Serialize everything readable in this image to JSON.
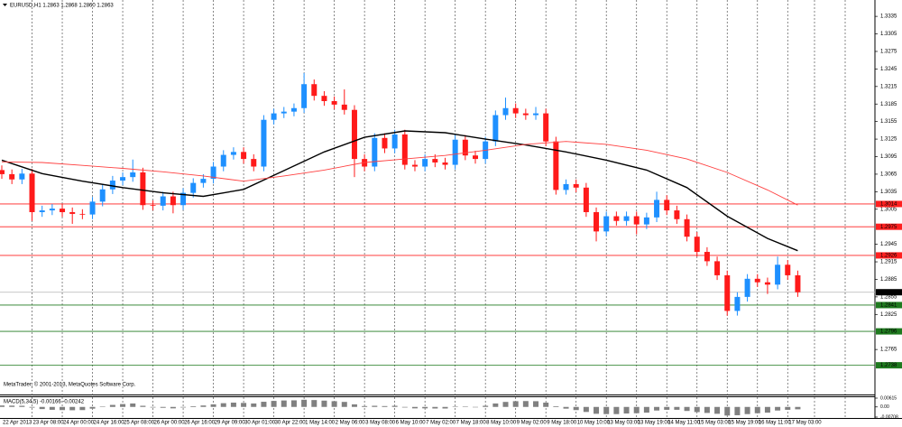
{
  "chart_data": [
    {
      "type": "candlestick",
      "title": "EURUSD,H1  1.2863 1.2868 1.2860 1.2863",
      "annotation": "MetaTrader, © 2001-2013, MetaQuotes Software Corp.",
      "up_color": "#1e90ff",
      "down_color": "#ff1a1a",
      "xlim": [
        -0.18,
        86.66
      ],
      "ylim": [
        1.2688,
        1.3363
      ],
      "grid": true,
      "xticks": [
        {
          "value": 0,
          "label": "22 Apr 2013"
        },
        {
          "value": 3,
          "label": "23 Apr 08:00"
        },
        {
          "value": 6,
          "label": "24 Apr 00:00"
        },
        {
          "value": 9,
          "label": "24 Apr 16:00"
        },
        {
          "value": 12,
          "label": "25 Apr 08:00"
        },
        {
          "value": 15,
          "label": "26 Apr 00:00"
        },
        {
          "value": 18,
          "label": "26 Apr 16:00"
        },
        {
          "value": 21,
          "label": "29 Apr 09:00"
        },
        {
          "value": 24,
          "label": "30 Apr 01:00"
        },
        {
          "value": 27,
          "label": "30 Apr 22:00"
        },
        {
          "value": 30,
          "label": "1 May 14:00"
        },
        {
          "value": 33,
          "label": "2 May 06:00"
        },
        {
          "value": 36,
          "label": "3 May 08:00"
        },
        {
          "value": 39,
          "label": "6 May 10:00"
        },
        {
          "value": 42,
          "label": "7 May 02:00"
        },
        {
          "value": 45,
          "label": "7 May 18:00"
        },
        {
          "value": 48,
          "label": "8 May 10:00"
        },
        {
          "value": 51,
          "label": "9 May 02:00"
        },
        {
          "value": 54,
          "label": "9 May 18:00"
        },
        {
          "value": 57,
          "label": "10 May 10:00"
        },
        {
          "value": 60,
          "label": "13 May 03:00"
        },
        {
          "value": 63,
          "label": "13 May 19:00"
        },
        {
          "value": 66,
          "label": "14 May 11:00"
        },
        {
          "value": 69,
          "label": "15 May 03:00"
        },
        {
          "value": 72,
          "label": "15 May 19:00"
        },
        {
          "value": 75,
          "label": "16 May 11:00"
        },
        {
          "value": 78,
          "label": "17 May 03:00"
        }
      ],
      "yticks": [
        1.3335,
        1.3305,
        1.3275,
        1.3245,
        1.3215,
        1.3185,
        1.3155,
        1.3125,
        1.3095,
        1.3065,
        1.3035,
        1.3005,
        1.2945,
        1.2915,
        1.2885,
        1.2855,
        1.2825,
        1.2765
      ],
      "open": [
        1.3072,
        1.3065,
        1.3056,
        1.3066,
        1.3,
        1.3003,
        1.3006,
        1.3,
        1.2997,
        1.2996,
        1.3018,
        1.3039,
        1.3054,
        1.306,
        1.3068,
        1.3012,
        1.3011,
        1.3027,
        1.3012,
        1.3033,
        1.305,
        1.3057,
        1.3078,
        1.3098,
        1.3103,
        1.3091,
        1.3078,
        1.3158,
        1.3169,
        1.3172,
        1.3178,
        1.3219,
        1.3199,
        1.319,
        1.3184,
        1.3175,
        1.3091,
        1.3078,
        1.3127,
        1.3109,
        1.3133,
        1.3081,
        1.3078,
        1.3091,
        1.3085,
        1.3081,
        1.3124,
        1.3097,
        1.3091,
        1.3121,
        1.3166,
        1.3178,
        1.3169,
        1.3166,
        1.3169,
        1.3121,
        1.3038,
        1.3048,
        1.3042,
        1.3,
        1.2967,
        1.2993,
        1.2985,
        1.2993,
        1.2979,
        1.2991,
        1.3021,
        1.3003,
        1.2988,
        1.2958,
        1.2932,
        1.2916,
        1.2892,
        1.2831,
        1.2855,
        1.2886,
        1.288,
        1.2876,
        1.291,
        1.2892
      ],
      "high": [
        1.308,
        1.3073,
        1.3074,
        1.3074,
        1.3011,
        1.3014,
        1.3014,
        1.3008,
        1.3005,
        1.3026,
        1.3047,
        1.3062,
        1.3068,
        1.309,
        1.3076,
        1.302,
        1.3035,
        1.3035,
        1.3041,
        1.3058,
        1.3065,
        1.3086,
        1.3106,
        1.3111,
        1.3111,
        1.3099,
        1.3166,
        1.3177,
        1.318,
        1.3186,
        1.3238,
        1.3227,
        1.3207,
        1.3198,
        1.321,
        1.3183,
        1.3099,
        1.3135,
        1.3135,
        1.3141,
        1.3141,
        1.3089,
        1.3099,
        1.3099,
        1.3093,
        1.3132,
        1.3132,
        1.3105,
        1.3129,
        1.3174,
        1.3196,
        1.3186,
        1.3177,
        1.318,
        1.3177,
        1.3129,
        1.3056,
        1.3056,
        1.305,
        1.3008,
        1.3001,
        1.3001,
        1.3001,
        1.3001,
        1.2999,
        1.3035,
        1.3029,
        1.3011,
        1.2996,
        1.2966,
        1.294,
        1.2924,
        1.29,
        1.2863,
        1.2894,
        1.2894,
        1.2888,
        1.2924,
        1.2918,
        1.29
      ],
      "low": [
        1.3057,
        1.3048,
        1.3048,
        1.2985,
        1.2992,
        1.2995,
        1.2992,
        1.298,
        1.2988,
        1.2988,
        1.301,
        1.3031,
        1.3046,
        1.3052,
        1.3004,
        1.3003,
        1.3003,
        1.2998,
        1.3004,
        1.3025,
        1.3042,
        1.3049,
        1.307,
        1.309,
        1.3083,
        1.307,
        1.307,
        1.315,
        1.3161,
        1.3164,
        1.317,
        1.3191,
        1.3182,
        1.3176,
        1.3167,
        1.306,
        1.307,
        1.307,
        1.3101,
        1.3101,
        1.3073,
        1.307,
        1.307,
        1.3077,
        1.3073,
        1.3073,
        1.3089,
        1.3083,
        1.3083,
        1.3113,
        1.3158,
        1.3161,
        1.3158,
        1.3158,
        1.3113,
        1.303,
        1.303,
        1.3034,
        1.2992,
        1.295,
        1.2959,
        1.2977,
        1.2977,
        1.2962,
        1.2971,
        1.2983,
        1.2995,
        1.298,
        1.295,
        1.2924,
        1.2908,
        1.2884,
        1.2823,
        1.2823,
        1.2847,
        1.2872,
        1.286,
        1.2868,
        1.2884,
        1.2855
      ],
      "close": [
        1.3065,
        1.3056,
        1.3066,
        1.3,
        1.3003,
        1.3006,
        1.3,
        1.2997,
        1.2996,
        1.3018,
        1.3039,
        1.3054,
        1.306,
        1.3068,
        1.3012,
        1.3011,
        1.3027,
        1.3012,
        1.3033,
        1.305,
        1.3057,
        1.3078,
        1.3098,
        1.3103,
        1.3091,
        1.3078,
        1.3158,
        1.3169,
        1.3172,
        1.3178,
        1.3219,
        1.3199,
        1.319,
        1.3184,
        1.3175,
        1.3091,
        1.3078,
        1.3127,
        1.3109,
        1.3133,
        1.3081,
        1.3078,
        1.3091,
        1.3085,
        1.3081,
        1.3124,
        1.3097,
        1.3091,
        1.3121,
        1.3166,
        1.3178,
        1.3169,
        1.3166,
        1.3169,
        1.3121,
        1.3038,
        1.3048,
        1.3042,
        1.3,
        1.2967,
        1.2993,
        1.2985,
        1.2993,
        1.2979,
        1.2991,
        1.3021,
        1.3003,
        1.2988,
        1.2958,
        1.2932,
        1.2916,
        1.2892,
        1.2831,
        1.2855,
        1.2886,
        1.288,
        1.2876,
        1.291,
        1.2892,
        1.2863
      ],
      "lines": [
        {
          "color": "#000000",
          "x": [
            0,
            4,
            8,
            12,
            16,
            20,
            24,
            28,
            32,
            36,
            40,
            44,
            48,
            52,
            56,
            60,
            64,
            68,
            72,
            76,
            79
          ],
          "values": [
            1.3089,
            1.3066,
            1.3053,
            1.3042,
            1.3033,
            1.3027,
            1.3039,
            1.3071,
            1.3103,
            1.3128,
            1.3139,
            1.3136,
            1.3125,
            1.3115,
            1.3103,
            1.3089,
            1.3072,
            1.3042,
            1.2993,
            1.2955,
            1.2934
          ]
        },
        {
          "color": "#ff4040",
          "x": [
            0,
            4,
            8,
            12,
            16,
            20,
            24,
            28,
            32,
            36,
            40,
            44,
            48,
            52,
            56,
            60,
            64,
            68,
            72,
            76,
            79
          ],
          "values": [
            1.3086,
            1.3085,
            1.308,
            1.3075,
            1.3069,
            1.3062,
            1.3053,
            1.3062,
            1.3072,
            1.3085,
            1.3091,
            1.3097,
            1.3106,
            1.3116,
            1.3121,
            1.3116,
            1.3106,
            1.3091,
            1.3068,
            1.3038,
            1.3012
          ]
        }
      ],
      "levels": [
        {
          "value": 1.3014,
          "color": "#ff2020"
        },
        {
          "value": 1.2975,
          "color": "#ff2020"
        },
        {
          "value": 1.2926,
          "color": "#ff2020"
        },
        {
          "value": 1.2841,
          "color": "#1f7a1f"
        },
        {
          "value": 1.2796,
          "color": "#1f7a1f"
        },
        {
          "value": 1.2738,
          "color": "#1f7a1f"
        }
      ],
      "last_price": {
        "value": 1.2863,
        "color": "#000000"
      }
    },
    {
      "type": "macd",
      "title": "MACD(5,34,5) -0.00166 -0.00242",
      "color": "#808080",
      "ylim": [
        -0.00708,
        0.00615
      ],
      "yticks": [
        0.00615,
        {
          "value": 0,
          "label": "0.00"
        },
        -0.00708
      ],
      "values": [
        0.001,
        0.0009,
        0.0008,
        -0.0005,
        -0.0015,
        -0.002,
        -0.0022,
        -0.0023,
        -0.0022,
        -0.0012,
        0.0002,
        0.0014,
        0.002,
        0.0024,
        0.0008,
        -0.0004,
        -0.0006,
        -0.001,
        -0.0004,
        0.0005,
        0.001,
        0.0018,
        0.0026,
        0.003,
        0.0028,
        0.0024,
        0.0036,
        0.0042,
        0.0045,
        0.0046,
        0.005,
        0.0048,
        0.0044,
        0.004,
        0.0035,
        0.0018,
        0.0006,
        0.0008,
        0.0006,
        0.0008,
        -0.0004,
        -0.001,
        -0.001,
        -0.0011,
        -0.0011,
        0.0002,
        0.0002,
        0.0,
        0.0008,
        0.0024,
        0.0035,
        0.004,
        0.0041,
        0.004,
        0.003,
        0.0005,
        -0.0012,
        -0.0022,
        -0.0035,
        -0.0048,
        -0.005,
        -0.005,
        -0.0046,
        -0.0044,
        -0.004,
        -0.0025,
        -0.002,
        -0.002,
        -0.0028,
        -0.0036,
        -0.0042,
        -0.0048,
        -0.006,
        -0.0058,
        -0.005,
        -0.0044,
        -0.004,
        -0.0025,
        -0.002,
        -0.00166
      ]
    }
  ]
}
